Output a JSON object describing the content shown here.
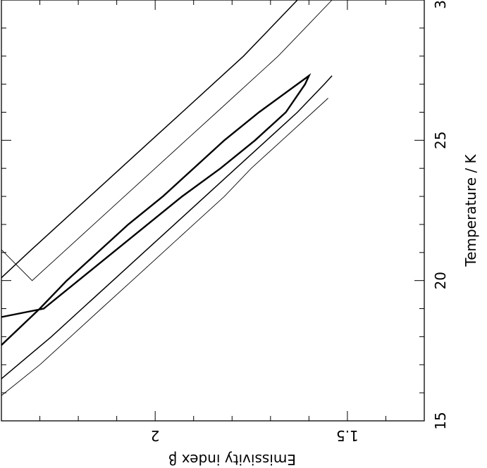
{
  "chart_data": {
    "type": "contour",
    "xlabel": "Temperature / K",
    "ylabel": "Emissivity index β",
    "xlim": [
      15,
      30
    ],
    "ylim": [
      1.3,
      2.4
    ],
    "x_ticks": [
      15,
      20,
      25,
      30
    ],
    "x_tick_labels": [
      "15",
      "20",
      "25",
      "30"
    ],
    "y_ticks": [
      1.5,
      2
    ],
    "y_tick_labels": [
      "1.5",
      "2"
    ],
    "grid": false,
    "contours": [
      {
        "level_rank": 1,
        "closed": true,
        "upper": [
          [
            17.7,
            2.4
          ],
          [
            19.0,
            2.3
          ],
          [
            20.0,
            2.23
          ],
          [
            21.0,
            2.15
          ],
          [
            22.0,
            2.07
          ],
          [
            23.0,
            1.98
          ],
          [
            24.0,
            1.9
          ],
          [
            25.0,
            1.82
          ],
          [
            26.0,
            1.73
          ],
          [
            27.0,
            1.63
          ],
          [
            27.3,
            1.6
          ]
        ],
        "lower": [
          [
            27.0,
            1.61
          ],
          [
            26.0,
            1.66
          ],
          [
            25.0,
            1.74
          ],
          [
            24.0,
            1.83
          ],
          [
            23.0,
            1.93
          ],
          [
            22.0,
            2.02
          ],
          [
            21.0,
            2.11
          ],
          [
            20.0,
            2.2
          ],
          [
            19.0,
            2.29
          ],
          [
            18.7,
            2.4
          ]
        ]
      },
      {
        "level_rank": 2,
        "closed": false,
        "upper": [
          [
            16.5,
            2.4
          ],
          [
            18.0,
            2.27
          ],
          [
            19.0,
            2.19
          ],
          [
            20.0,
            2.11
          ],
          [
            21.0,
            2.03
          ],
          [
            22.0,
            1.95
          ],
          [
            23.0,
            1.87
          ],
          [
            24.0,
            1.79
          ],
          [
            25.0,
            1.71
          ],
          [
            26.0,
            1.63
          ],
          [
            27.0,
            1.56
          ],
          [
            27.3,
            1.54
          ]
        ],
        "lower": [
          [
            30.0,
            1.63
          ],
          [
            29.0,
            1.7
          ],
          [
            28.0,
            1.77
          ],
          [
            27.0,
            1.85
          ],
          [
            26.0,
            1.93
          ],
          [
            25.0,
            2.01
          ],
          [
            24.0,
            2.09
          ],
          [
            23.0,
            2.17
          ],
          [
            22.0,
            2.25
          ],
          [
            21.0,
            2.33
          ],
          [
            20.1,
            2.4
          ]
        ]
      },
      {
        "level_rank": 3,
        "closed": false,
        "upper": [
          [
            15.9,
            2.4
          ],
          [
            17.0,
            2.3
          ],
          [
            18.0,
            2.22
          ],
          [
            19.0,
            2.14
          ],
          [
            20.0,
            2.06
          ],
          [
            21.0,
            1.98
          ],
          [
            22.0,
            1.9
          ],
          [
            23.0,
            1.82
          ],
          [
            24.0,
            1.75
          ],
          [
            25.0,
            1.67
          ],
          [
            26.0,
            1.59
          ],
          [
            26.5,
            1.55
          ]
        ],
        "lower": [
          [
            30.0,
            1.54
          ],
          [
            29.0,
            1.61
          ],
          [
            28.0,
            1.68
          ],
          [
            27.0,
            1.76
          ],
          [
            26.0,
            1.84
          ],
          [
            25.0,
            1.92
          ],
          [
            24.0,
            2.0
          ],
          [
            23.0,
            2.08
          ],
          [
            22.0,
            2.16
          ],
          [
            21.0,
            2.24
          ],
          [
            20.0,
            2.32
          ],
          [
            21.1,
            2.4
          ]
        ]
      }
    ]
  }
}
